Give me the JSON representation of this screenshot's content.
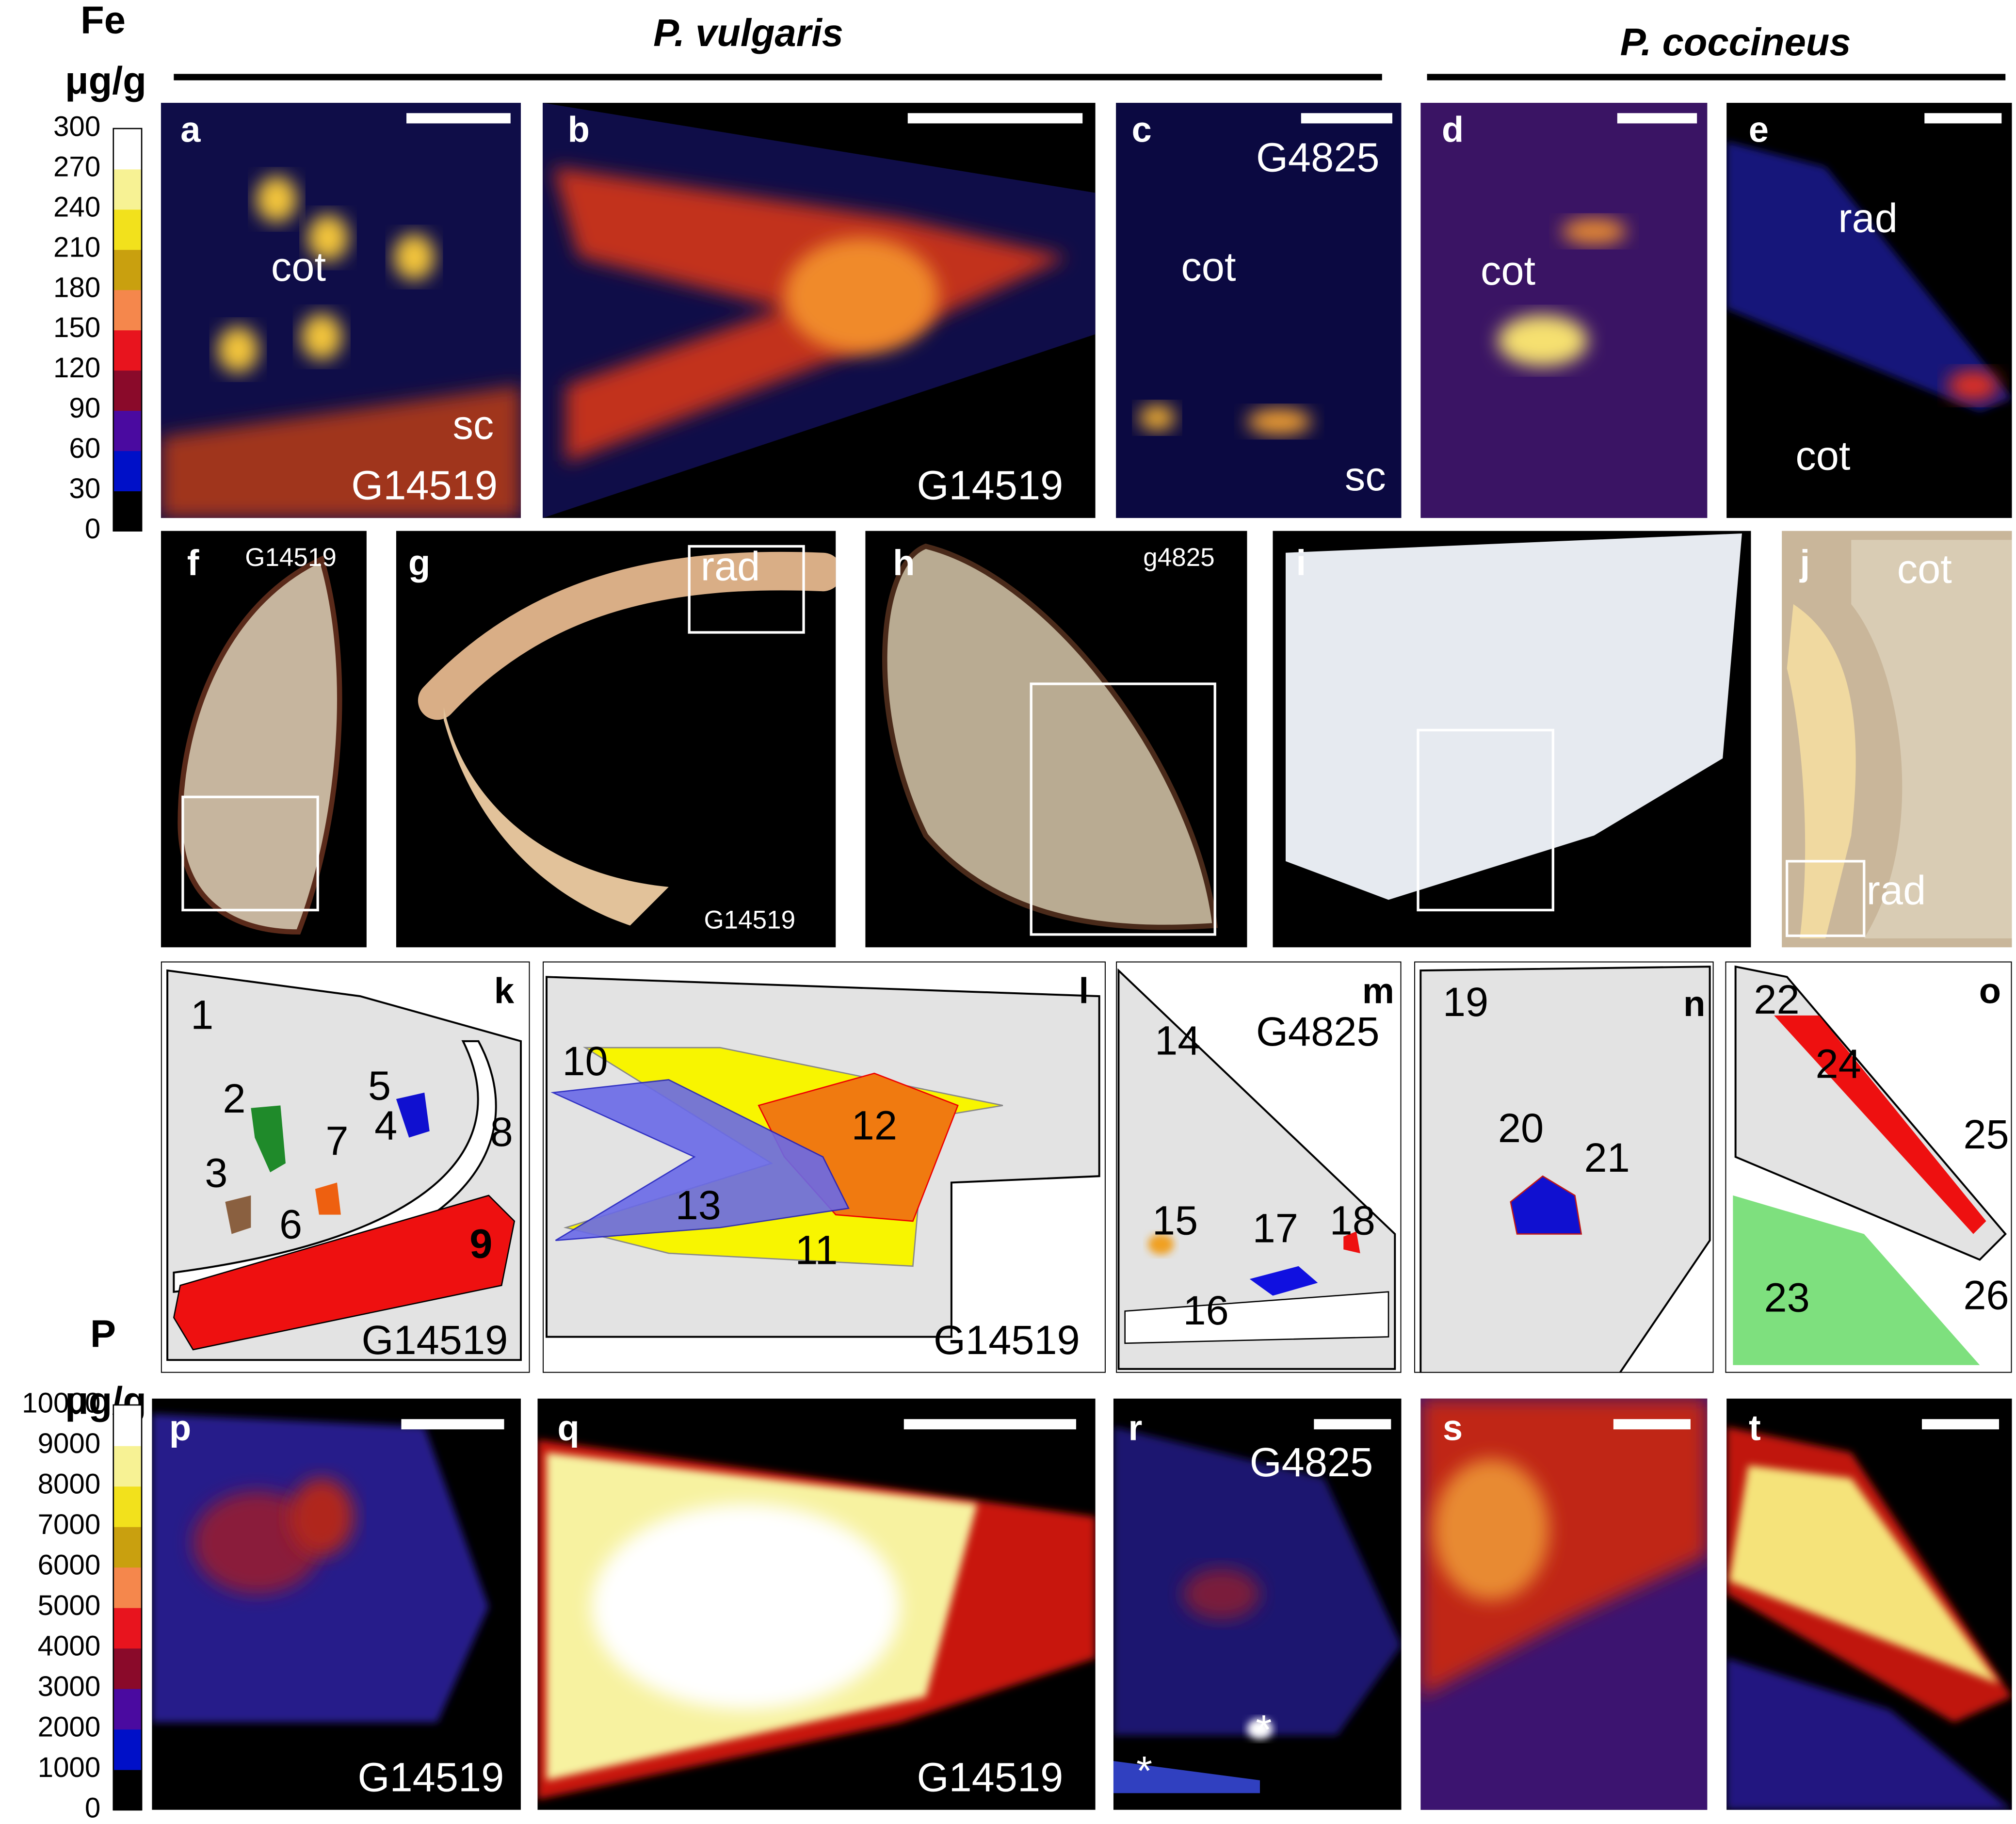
{
  "species": [
    "P. vulgaris",
    "P. coccineus"
  ],
  "fe_scale": {
    "element": "Fe",
    "unit": "μg/g",
    "ticks": [
      "0",
      "30",
      "60",
      "90",
      "120",
      "150",
      "180",
      "210",
      "240",
      "270",
      "300"
    ]
  },
  "p_scale": {
    "element": "P",
    "unit": "μg/g",
    "ticks": [
      "0",
      "1000",
      "2000",
      "3000",
      "4000",
      "5000",
      "6000",
      "7000",
      "8000",
      "9000",
      "10000"
    ]
  },
  "panels": [
    {
      "letter": "a",
      "labels": [
        "cot",
        "sc",
        "G14519"
      ]
    },
    {
      "letter": "b",
      "labels": [
        "G14519"
      ]
    },
    {
      "letter": "c",
      "labels": [
        "G4825",
        "cot",
        "sc"
      ]
    },
    {
      "letter": "d",
      "labels": [
        "cot"
      ]
    },
    {
      "letter": "e",
      "labels": [
        "rad",
        "cot"
      ]
    },
    {
      "letter": "f",
      "labels": [
        "G14519"
      ]
    },
    {
      "letter": "g",
      "labels": [
        "rad",
        "G14519"
      ]
    },
    {
      "letter": "h",
      "labels": [
        "g4825"
      ]
    },
    {
      "letter": "i",
      "labels": []
    },
    {
      "letter": "j",
      "labels": [
        "cot",
        "rad"
      ]
    },
    {
      "letter": "k",
      "labels": [
        "1",
        "2",
        "3",
        "4",
        "5",
        "6",
        "7",
        "8",
        "9",
        "G14519"
      ]
    },
    {
      "letter": "l",
      "labels": [
        "10",
        "11",
        "12",
        "13",
        "G14519"
      ]
    },
    {
      "letter": "m",
      "labels": [
        "14",
        "G4825",
        "15",
        "16",
        "17",
        "18"
      ]
    },
    {
      "letter": "n",
      "labels": [
        "19",
        "20",
        "21"
      ]
    },
    {
      "letter": "o",
      "labels": [
        "22",
        "24",
        "25",
        "26",
        "23"
      ]
    },
    {
      "letter": "p",
      "labels": [
        "G14519"
      ]
    },
    {
      "letter": "q",
      "labels": [
        "G14519"
      ]
    },
    {
      "letter": "r",
      "labels": [
        "G4825",
        "*",
        "*"
      ]
    },
    {
      "letter": "s",
      "labels": []
    },
    {
      "letter": "t",
      "labels": []
    }
  ]
}
